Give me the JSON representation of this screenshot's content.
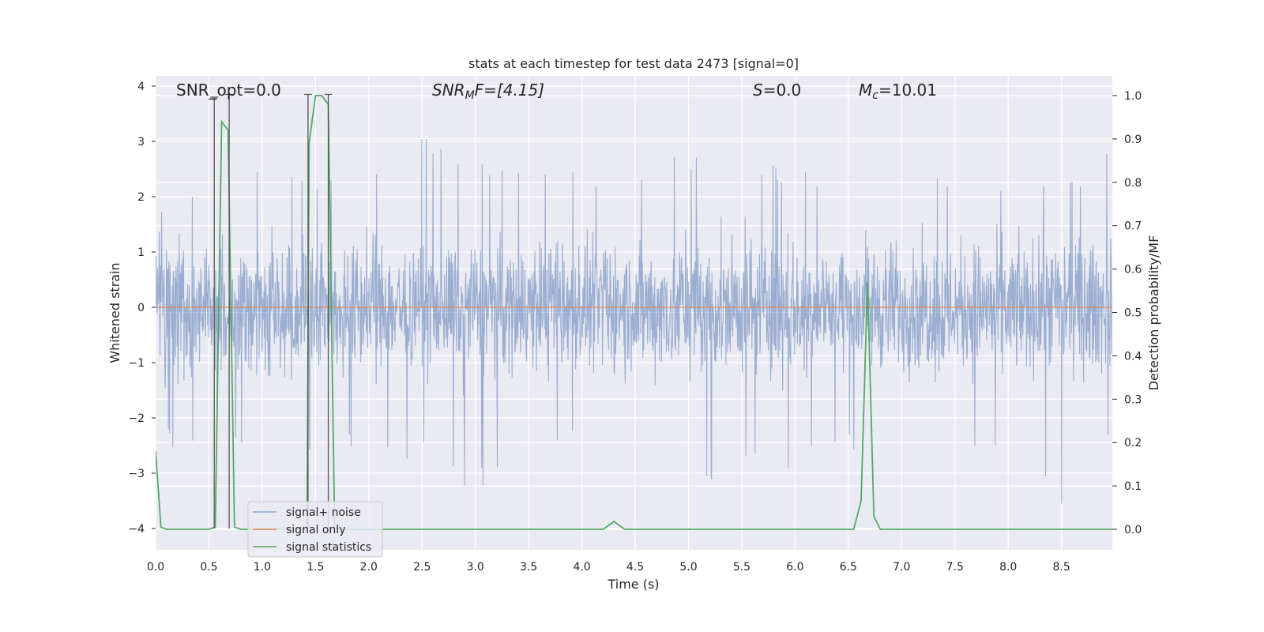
{
  "chart_data": {
    "type": "line",
    "title": "stats at each timestep for test data 2473 [signal=0]",
    "xlabel": "Time (s)",
    "ylabel": "Whitened strain",
    "ylabel_right": "Detection probability/MF",
    "xlim": [
      0.0,
      9.0
    ],
    "ylim": [
      -4.4,
      4.2
    ],
    "ylim_right": [
      -0.05,
      1.04
    ],
    "x_ticks": [
      "0.0",
      "0.5",
      "1.0",
      "1.5",
      "2.0",
      "2.5",
      "3.0",
      "3.5",
      "4.0",
      "4.5",
      "5.0",
      "5.5",
      "6.0",
      "6.5",
      "7.0",
      "7.5",
      "8.0",
      "8.5"
    ],
    "y_ticks": [
      "−4",
      "−3",
      "−2",
      "−1",
      "0",
      "1",
      "2",
      "3",
      "4"
    ],
    "y_right_ticks": [
      "0.0",
      "0.1",
      "0.2",
      "0.3",
      "0.4",
      "0.5",
      "0.6",
      "0.7",
      "0.8",
      "0.9",
      "1.0"
    ],
    "grid": true,
    "legend_position": "lower-left",
    "colors": {
      "background": "#eaeaf2",
      "grid": "#ffffff",
      "noise": "#4c72b0",
      "signal_only": "#dd8452",
      "statistics": "#55a868",
      "marker": "#555555"
    },
    "annotations": {
      "snr_opt": "SNR_opt=0.0",
      "snr_mf_base": "SNR",
      "snr_mf_sub": "M",
      "snr_mf_rest": "F=[4.15]",
      "s_base": "S",
      "s_rest": "=0.0",
      "mc_base": "M",
      "mc_sub": "c",
      "mc_rest": "=10.01"
    },
    "series": [
      {
        "name": "signal+ noise",
        "axis": "left",
        "description": "dense whitened strain noise, roughly within ±2 with spikes to about ±4",
        "envelope_upper": [
          [
            0.0,
            1.9
          ],
          [
            0.5,
            2.4
          ],
          [
            1.0,
            2.5
          ],
          [
            1.5,
            2.3
          ],
          [
            2.0,
            2.6
          ],
          [
            2.5,
            3.1
          ],
          [
            3.0,
            2.6
          ],
          [
            3.5,
            2.8
          ],
          [
            4.0,
            2.4
          ],
          [
            4.5,
            2.6
          ],
          [
            5.0,
            2.8
          ],
          [
            5.5,
            2.7
          ],
          [
            6.0,
            2.6
          ],
          [
            6.5,
            2.4
          ],
          [
            7.0,
            2.6
          ],
          [
            7.5,
            2.5
          ],
          [
            8.0,
            2.4
          ],
          [
            8.5,
            2.3
          ],
          [
            9.0,
            3.0
          ]
        ],
        "envelope_lower": [
          [
            0.0,
            -2.6
          ],
          [
            0.5,
            -2.4
          ],
          [
            1.0,
            -2.5
          ],
          [
            1.5,
            -2.7
          ],
          [
            2.0,
            -2.6
          ],
          [
            2.5,
            -2.8
          ],
          [
            3.0,
            -3.4
          ],
          [
            3.5,
            -2.6
          ],
          [
            4.0,
            -2.5
          ],
          [
            4.5,
            -2.8
          ],
          [
            5.0,
            -3.5
          ],
          [
            5.5,
            -2.8
          ],
          [
            6.0,
            -3.1
          ],
          [
            6.5,
            -2.6
          ],
          [
            7.0,
            -2.5
          ],
          [
            7.5,
            -2.6
          ],
          [
            8.0,
            -2.5
          ],
          [
            8.5,
            -3.7
          ],
          [
            9.0,
            -2.4
          ]
        ]
      },
      {
        "name": "signal only",
        "axis": "left",
        "points": [
          [
            0.0,
            0.0
          ],
          [
            9.0,
            0.0
          ]
        ]
      },
      {
        "name": "signal statistics",
        "axis": "right",
        "points": [
          [
            0.0,
            0.18
          ],
          [
            0.05,
            0.005
          ],
          [
            0.1,
            0.0
          ],
          [
            0.5,
            0.0
          ],
          [
            0.56,
            0.005
          ],
          [
            0.62,
            0.94
          ],
          [
            0.68,
            0.92
          ],
          [
            0.74,
            0.005
          ],
          [
            0.8,
            0.0
          ],
          [
            1.42,
            0.0
          ],
          [
            1.44,
            0.89
          ],
          [
            1.5,
            1.0
          ],
          [
            1.56,
            1.0
          ],
          [
            1.62,
            0.98
          ],
          [
            1.68,
            0.005
          ],
          [
            1.74,
            0.0
          ],
          [
            4.2,
            0.0
          ],
          [
            4.3,
            0.018
          ],
          [
            4.4,
            0.0
          ],
          [
            6.55,
            0.0
          ],
          [
            6.62,
            0.065
          ],
          [
            6.68,
            0.57
          ],
          [
            6.74,
            0.03
          ],
          [
            6.8,
            0.0
          ],
          [
            9.0,
            0.0
          ]
        ]
      }
    ],
    "markers": [
      {
        "x": 0.55,
        "y_top": 3.8,
        "y_bottom": -4.0
      },
      {
        "x": 0.69,
        "y_top": 3.85,
        "y_bottom": -4.0
      },
      {
        "x": 1.43,
        "y_top": 3.85,
        "y_bottom": -4.0
      },
      {
        "x": 1.62,
        "y_top": 3.85,
        "y_bottom": -4.0
      }
    ]
  }
}
